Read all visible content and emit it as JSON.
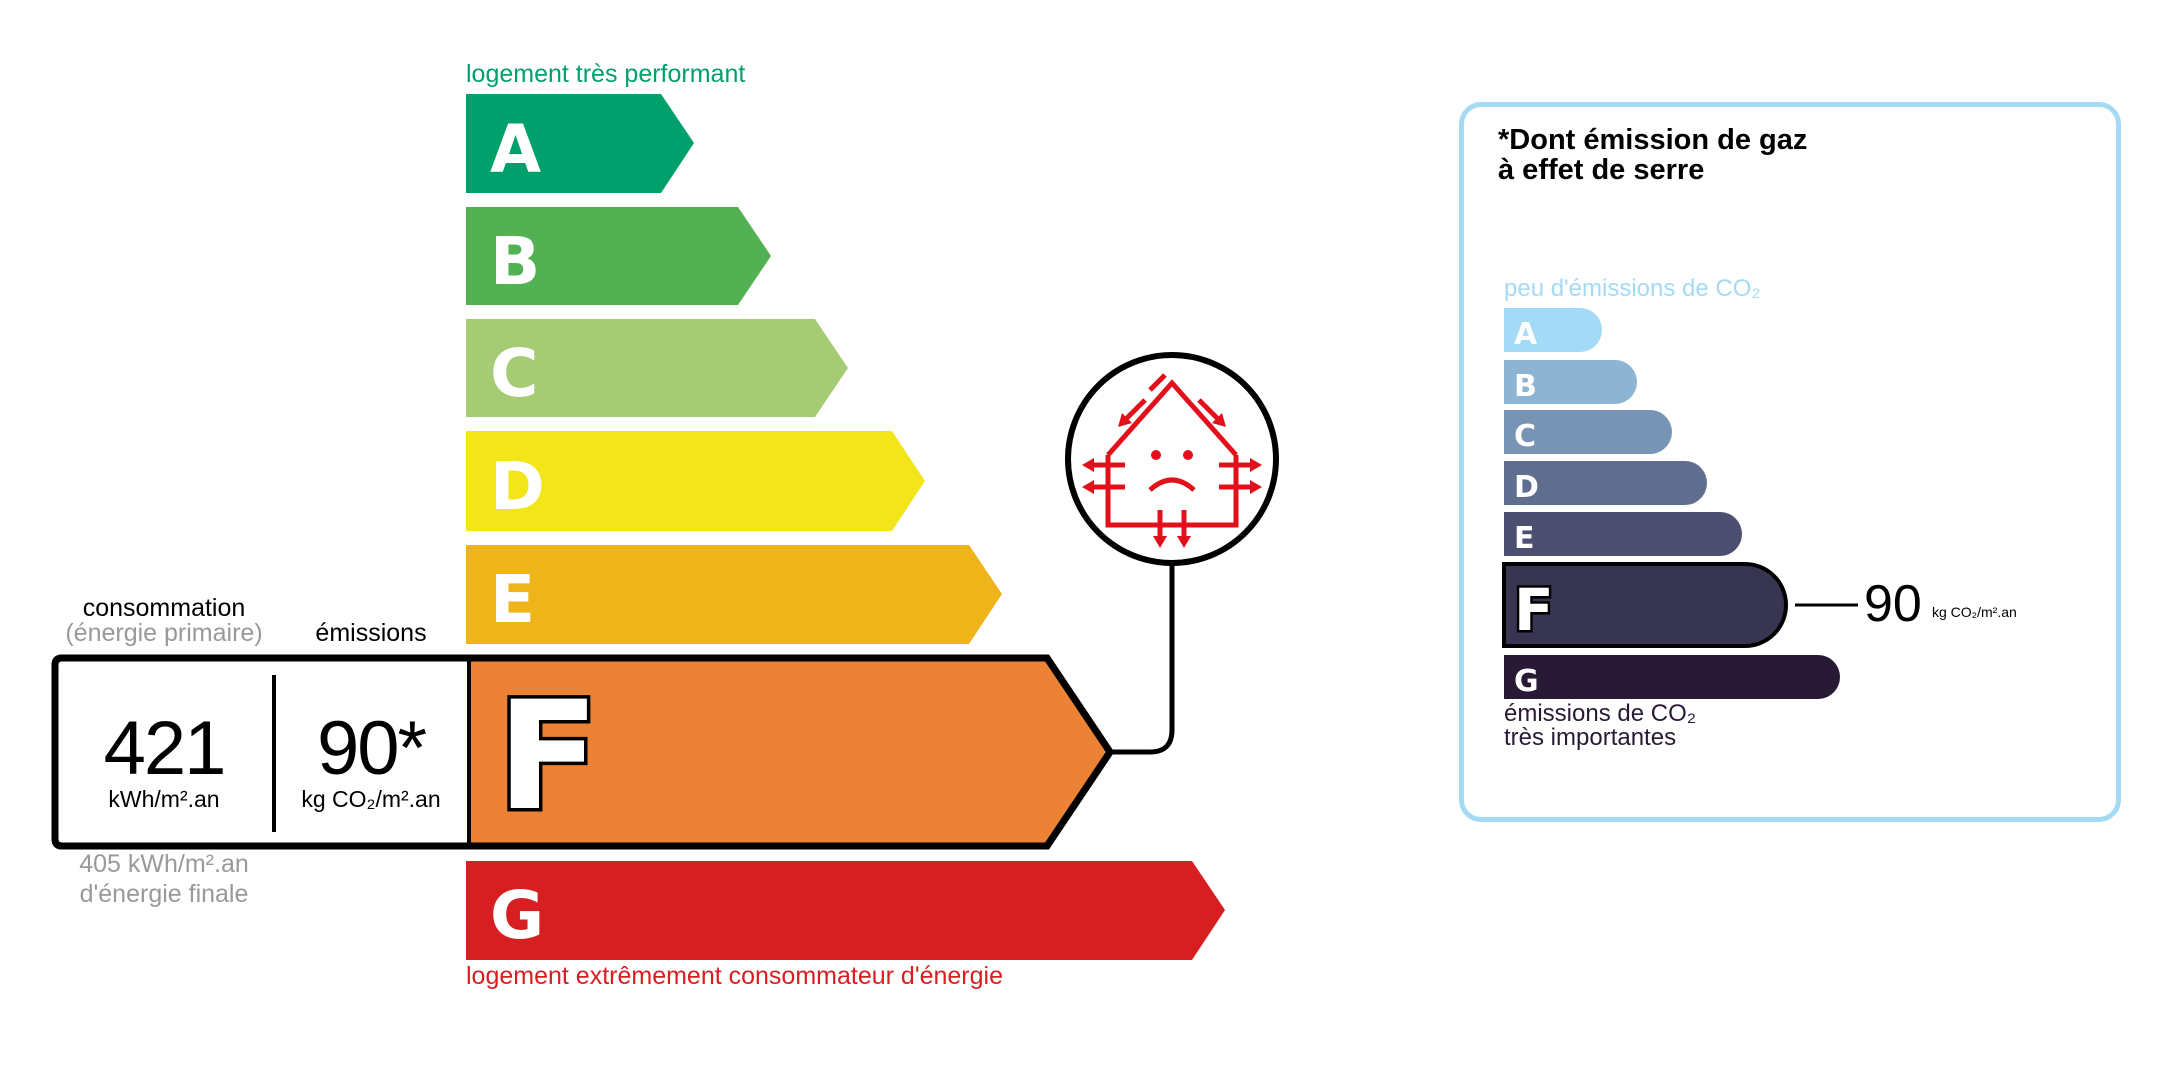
{
  "energy": {
    "top_label": "logement très performant",
    "bottom_label": "logement extrêmement consommateur d'énergie",
    "classes": [
      {
        "letter": "A",
        "color": "#00a06d"
      },
      {
        "letter": "B",
        "color": "#52b153"
      },
      {
        "letter": "C",
        "color": "#a5cc74"
      },
      {
        "letter": "D",
        "color": "#f2e61b"
      },
      {
        "letter": "E",
        "color": "#f0b41b"
      },
      {
        "letter": "F",
        "color": "#eb8235"
      },
      {
        "letter": "G",
        "color": "#d71e21"
      }
    ],
    "current_class": "F",
    "consumption_label": "consommation",
    "consumption_sublabel": "(énergie primaire)",
    "emissions_label": "émissions",
    "consumption_value": "421",
    "consumption_unit": "kWh/m².an",
    "emissions_value": "90*",
    "emissions_unit": "kg CO₂/m².an",
    "final_energy_value": "405 kWh/m².an",
    "final_energy_label": "d'énergie finale",
    "icon": "passoire-thermique-house-frown-icon"
  },
  "ges": {
    "title_line1": "*Dont émission de gaz",
    "title_line2": "à effet de serre",
    "top_label": "peu d'émissions de CO₂",
    "bottom_label_line1": "émissions de CO₂",
    "bottom_label_line2": "très importantes",
    "classes": [
      {
        "letter": "A",
        "color": "#a4daf6"
      },
      {
        "letter": "B",
        "color": "#8db4d3"
      },
      {
        "letter": "C",
        "color": "#7794b4"
      },
      {
        "letter": "D",
        "color": "#5f6d8f"
      },
      {
        "letter": "E",
        "color": "#4c4f70"
      },
      {
        "letter": "F",
        "color": "#383552"
      },
      {
        "letter": "G",
        "color": "#281a35"
      }
    ],
    "current_class": "F",
    "value": "90",
    "unit": "kg CO₂/m².an",
    "border_color": "#a4daf4"
  }
}
